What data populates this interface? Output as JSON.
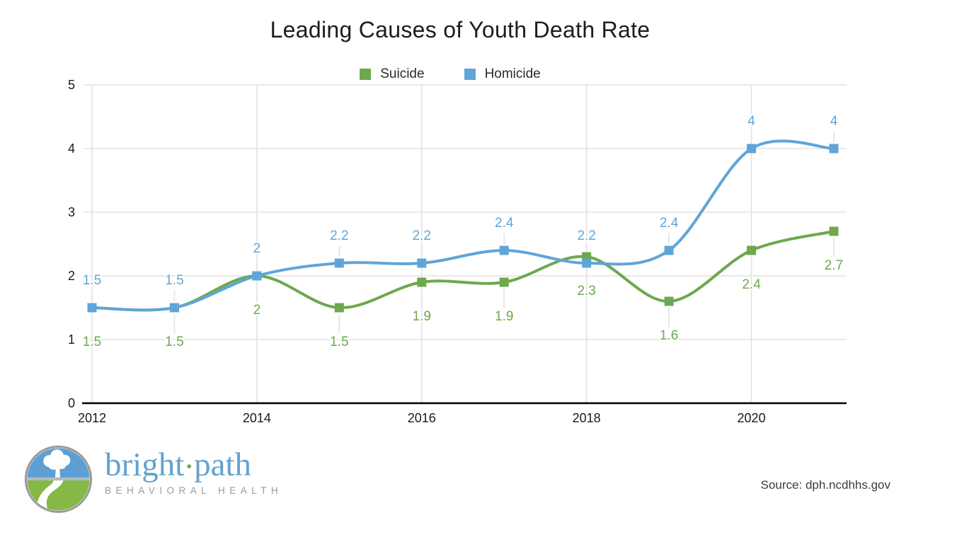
{
  "chart_data": {
    "type": "line",
    "title": "Leading Causes of Youth Death Rate",
    "x": [
      2012,
      2013,
      2014,
      2015,
      2016,
      2017,
      2018,
      2019,
      2020,
      2021
    ],
    "series": [
      {
        "name": "Suicide",
        "color": "#6da84e",
        "values": [
          1.5,
          1.5,
          2,
          1.5,
          1.9,
          1.9,
          2.3,
          1.6,
          2.4,
          2.7
        ],
        "label_position": "below"
      },
      {
        "name": "Homicide",
        "color": "#5fa5d8",
        "values": [
          1.5,
          1.5,
          2,
          2.2,
          2.2,
          2.4,
          2.2,
          2.4,
          4,
          4
        ],
        "label_position": "above"
      }
    ],
    "xlabel": "",
    "ylabel": "",
    "ylim": [
      0,
      5
    ],
    "yticks": [
      0,
      1,
      2,
      3,
      4,
      5
    ],
    "xticks": [
      2012,
      2014,
      2016,
      2018,
      2020
    ],
    "grid": true,
    "legend_position": "top-center",
    "marker": "square",
    "smooth": true,
    "gridline_color": "#e2e2e2",
    "leader_line_color": "#e6e6e6",
    "axis_color": "#000000",
    "tick_label_color": "#1a1a1a"
  },
  "logo": {
    "word1": "bright",
    "separator": "•",
    "word2": "path",
    "subtitle": "BEHAVIORAL HEALTH",
    "text_color": "#63a2cf",
    "dot_color": "#6da84e",
    "subtitle_color": "#9a9a9a",
    "sky_color": "#5d9fd4",
    "grass_color": "#85b845",
    "horizon_color": "#b4babe",
    "ring_color": "#9b9b9b"
  },
  "source": {
    "text": "Source: dph.ncdhhs.gov"
  }
}
